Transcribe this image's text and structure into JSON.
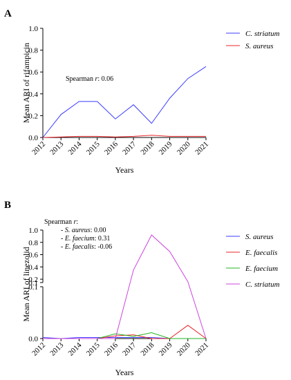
{
  "chart_data": [
    {
      "panel": "A",
      "type": "line",
      "title": "",
      "xlabel": "Years",
      "ylabel": "Mean ARI of rifampicin",
      "ylim": [
        0,
        1.0
      ],
      "yticks": [
        "0.0",
        "0.2",
        "0.4",
        "0.6",
        "0.8",
        "1.0"
      ],
      "x": [
        "2012",
        "2013",
        "2014",
        "2015",
        "2016",
        "2017",
        "2018",
        "2019",
        "2020",
        "2021"
      ],
      "series": [
        {
          "name": "C. striatum",
          "color": "#3b3bff",
          "values": [
            0.0,
            0.21,
            0.33,
            0.33,
            0.17,
            0.3,
            0.13,
            0.36,
            0.54,
            0.65
          ]
        },
        {
          "name": "S. aureus",
          "color": "#e8262a",
          "values": [
            0.0,
            0.005,
            0.01,
            0.01,
            0.005,
            0.01,
            0.02,
            0.01,
            0.01,
            0.01
          ]
        }
      ],
      "annotation": {
        "prefix": "Spearman ",
        "var": "r",
        "suffix": ": 0.06"
      },
      "legend_position": "top-right",
      "grid": false
    },
    {
      "panel": "B",
      "type": "line",
      "title": "",
      "xlabel": "Years",
      "ylabel": "Mean ARI of linezolid",
      "ylim": [
        0,
        1.0
      ],
      "axis_break": {
        "lower_range": [
          0,
          0.1
        ],
        "upper_range": [
          0.1,
          1.0
        ]
      },
      "yticks_upper": [
        "1.0",
        "0.8",
        "0.6",
        "0.4",
        "0.2",
        "0.1"
      ],
      "yticks_lower": [
        "0.1",
        "0.0"
      ],
      "x": [
        "2012",
        "2013",
        "2014",
        "2015",
        "2016",
        "2017",
        "2018",
        "2019",
        "2020",
        "2021"
      ],
      "series": [
        {
          "name": "S. aureus",
          "color": "#3b3bff",
          "values": [
            0.002,
            0.0,
            0.002,
            0.002,
            0.002,
            0.002,
            0.002,
            0.0,
            0.0,
            0.0
          ]
        },
        {
          "name": "E. faecalis",
          "color": "#e8262a",
          "values": [
            0.0,
            0.0,
            0.0,
            0.0,
            0.005,
            0.007,
            0.0,
            0.0,
            0.025,
            0.0
          ]
        },
        {
          "name": "E. faecium",
          "color": "#22b422",
          "values": [
            0.0,
            0.0,
            0.0,
            0.0,
            0.009,
            0.004,
            0.011,
            0.0,
            0.0,
            0.0
          ]
        },
        {
          "name": "C. striatum",
          "color": "#cc44dd",
          "values": [
            0.0,
            0.0,
            0.0,
            0.0,
            0.0,
            0.35,
            0.92,
            0.65,
            0.16,
            0.0
          ]
        }
      ],
      "annotation": {
        "header_prefix": "Spearman ",
        "header_var": "r",
        "header_suffix": ":",
        "lines": [
          {
            "prefix": "- ",
            "name": "S. aureus",
            "value": ": 0.00"
          },
          {
            "prefix": "- ",
            "name": "E. faecium",
            "value": ": 0.31"
          },
          {
            "prefix": "- ",
            "name": "E. faecalis",
            "value": ": -0.06"
          }
        ]
      },
      "legend_position": "right",
      "grid": false
    }
  ]
}
